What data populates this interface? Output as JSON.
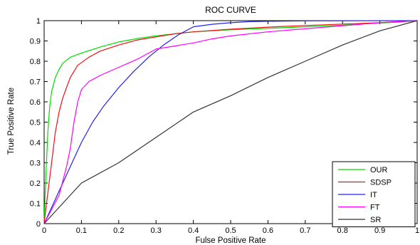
{
  "chart_data": {
    "type": "line",
    "title": "ROC CURVE",
    "xlabel": "Fulse Positive Rate",
    "ylabel": "True Positive Rate",
    "xlim": [
      0,
      1
    ],
    "ylim": [
      0,
      1
    ],
    "x_ticks": [
      "0",
      "0.1",
      "0.2",
      "0.3",
      "0.4",
      "0.5",
      "0.6",
      "0.7",
      "0.8",
      "0.9",
      "1"
    ],
    "y_ticks": [
      "0",
      "0.1",
      "0.2",
      "0.3",
      "0.4",
      "0.5",
      "0.6",
      "0.7",
      "0.8",
      "0.9",
      "1"
    ],
    "grid": false,
    "legend_position": "bottom-right",
    "series": [
      {
        "name": "OUR",
        "color": "#00dd00",
        "points": [
          [
            0,
            0
          ],
          [
            0.002,
            0.1
          ],
          [
            0.005,
            0.25
          ],
          [
            0.01,
            0.45
          ],
          [
            0.015,
            0.58
          ],
          [
            0.02,
            0.65
          ],
          [
            0.03,
            0.72
          ],
          [
            0.04,
            0.76
          ],
          [
            0.05,
            0.79
          ],
          [
            0.07,
            0.82
          ],
          [
            0.1,
            0.84
          ],
          [
            0.15,
            0.87
          ],
          [
            0.2,
            0.895
          ],
          [
            0.25,
            0.912
          ],
          [
            0.3,
            0.925
          ],
          [
            0.35,
            0.935
          ],
          [
            0.4,
            0.945
          ],
          [
            0.5,
            0.955
          ],
          [
            0.6,
            0.962
          ],
          [
            0.7,
            0.97
          ],
          [
            0.8,
            0.978
          ],
          [
            0.9,
            0.988
          ],
          [
            0.95,
            0.993
          ],
          [
            1,
            1
          ]
        ]
      },
      {
        "name": "SDSP",
        "color": "#ee1111",
        "points": [
          [
            0,
            0
          ],
          [
            0.005,
            0.08
          ],
          [
            0.01,
            0.15
          ],
          [
            0.02,
            0.3
          ],
          [
            0.03,
            0.45
          ],
          [
            0.04,
            0.55
          ],
          [
            0.05,
            0.62
          ],
          [
            0.07,
            0.72
          ],
          [
            0.09,
            0.78
          ],
          [
            0.12,
            0.82
          ],
          [
            0.15,
            0.85
          ],
          [
            0.2,
            0.88
          ],
          [
            0.25,
            0.905
          ],
          [
            0.3,
            0.92
          ],
          [
            0.35,
            0.935
          ],
          [
            0.4,
            0.945
          ],
          [
            0.5,
            0.958
          ],
          [
            0.6,
            0.968
          ],
          [
            0.7,
            0.976
          ],
          [
            0.8,
            0.983
          ],
          [
            0.9,
            0.99
          ],
          [
            1,
            1
          ]
        ]
      },
      {
        "name": "IT",
        "color": "#2222ee",
        "points": [
          [
            0,
            0
          ],
          [
            0.02,
            0.08
          ],
          [
            0.05,
            0.2
          ],
          [
            0.08,
            0.32
          ],
          [
            0.1,
            0.4
          ],
          [
            0.13,
            0.5
          ],
          [
            0.16,
            0.58
          ],
          [
            0.2,
            0.67
          ],
          [
            0.24,
            0.75
          ],
          [
            0.28,
            0.82
          ],
          [
            0.32,
            0.88
          ],
          [
            0.36,
            0.93
          ],
          [
            0.4,
            0.97
          ],
          [
            0.45,
            0.982
          ],
          [
            0.5,
            0.99
          ],
          [
            0.55,
            0.995
          ],
          [
            0.6,
            0.997
          ],
          [
            0.7,
            0.999
          ],
          [
            1,
            1
          ]
        ]
      },
      {
        "name": "FT",
        "color": "#ff00ff",
        "points": [
          [
            0,
            0
          ],
          [
            0.02,
            0.07
          ],
          [
            0.04,
            0.14
          ],
          [
            0.06,
            0.28
          ],
          [
            0.07,
            0.37
          ],
          [
            0.08,
            0.5
          ],
          [
            0.09,
            0.6
          ],
          [
            0.1,
            0.66
          ],
          [
            0.12,
            0.7
          ],
          [
            0.15,
            0.73
          ],
          [
            0.2,
            0.77
          ],
          [
            0.25,
            0.81
          ],
          [
            0.3,
            0.86
          ],
          [
            0.35,
            0.875
          ],
          [
            0.4,
            0.89
          ],
          [
            0.45,
            0.91
          ],
          [
            0.5,
            0.925
          ],
          [
            0.6,
            0.945
          ],
          [
            0.7,
            0.96
          ],
          [
            0.8,
            0.975
          ],
          [
            0.9,
            0.99
          ],
          [
            1,
            1
          ]
        ]
      },
      {
        "name": "SR",
        "color": "#333333",
        "points": [
          [
            0,
            0
          ],
          [
            0.1,
            0.2
          ],
          [
            0.2,
            0.3
          ],
          [
            0.3,
            0.425
          ],
          [
            0.4,
            0.55
          ],
          [
            0.5,
            0.63
          ],
          [
            0.6,
            0.72
          ],
          [
            0.7,
            0.8
          ],
          [
            0.8,
            0.88
          ],
          [
            0.9,
            0.95
          ],
          [
            1,
            1
          ]
        ]
      }
    ]
  }
}
